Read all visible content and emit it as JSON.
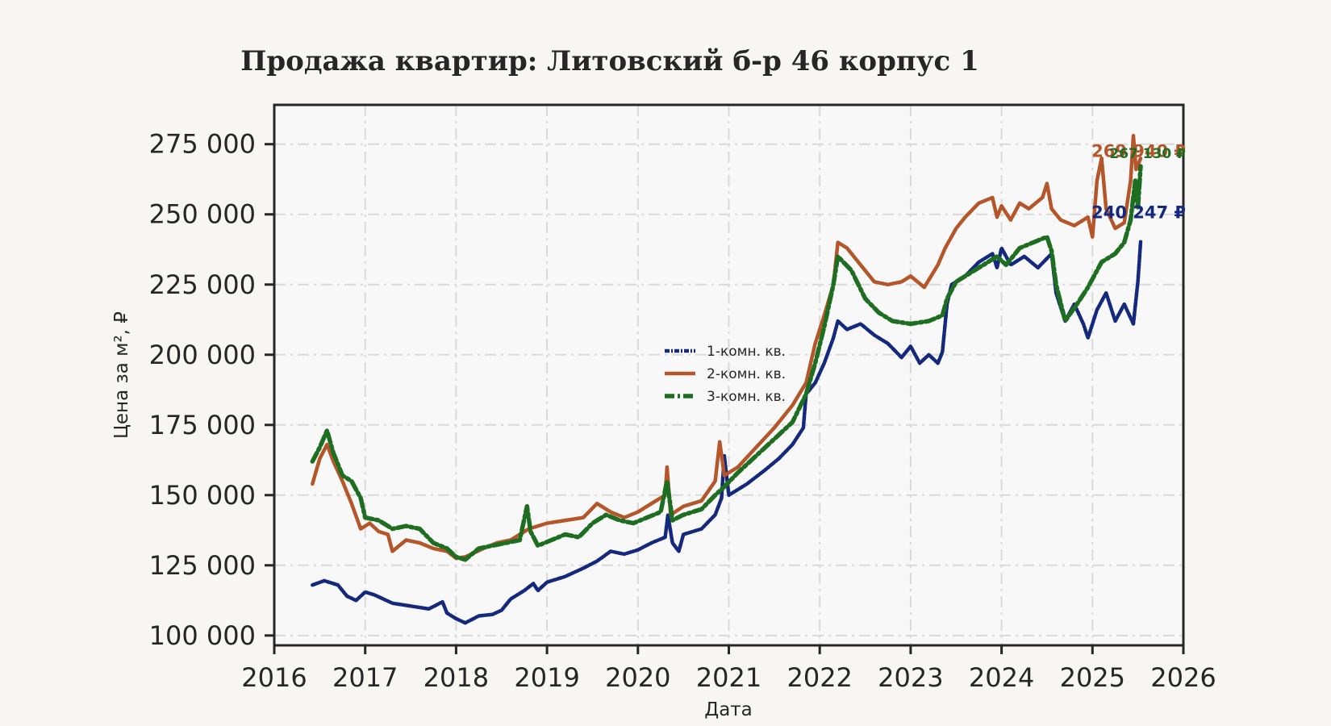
{
  "chart_data": {
    "type": "line",
    "title": "Продажа квартир: Литовский б-р 46 корпус 1",
    "xlabel": "Дата",
    "ylabel": "Цена за м², ₽",
    "xlim": [
      2016,
      2026
    ],
    "ylim": [
      96500,
      289000
    ],
    "x_ticks": [
      "2016",
      "2017",
      "2018",
      "2019",
      "2020",
      "2021",
      "2022",
      "2023",
      "2024",
      "2025",
      "2026"
    ],
    "y_ticks": [
      "100 000",
      "125 000",
      "150 000",
      "175 000",
      "200 000",
      "225 000",
      "250 000",
      "275 000"
    ],
    "grid": true,
    "legend_position": "center",
    "background": "#f8f8f8",
    "series": [
      {
        "name": "1-комн. кв.",
        "color": "#14287d",
        "end_label": "240 247 ₽",
        "points": [
          [
            2016.42,
            118000
          ],
          [
            2016.55,
            119500
          ],
          [
            2016.7,
            118000
          ],
          [
            2016.8,
            114000
          ],
          [
            2016.9,
            112500
          ],
          [
            2017.0,
            115500
          ],
          [
            2017.1,
            114500
          ],
          [
            2017.3,
            111500
          ],
          [
            2017.5,
            110500
          ],
          [
            2017.7,
            109500
          ],
          [
            2017.85,
            112000
          ],
          [
            2017.9,
            108000
          ],
          [
            2018.0,
            106000
          ],
          [
            2018.1,
            104500
          ],
          [
            2018.25,
            107000
          ],
          [
            2018.4,
            107500
          ],
          [
            2018.5,
            109000
          ],
          [
            2018.6,
            113000
          ],
          [
            2018.75,
            116000
          ],
          [
            2018.85,
            118500
          ],
          [
            2018.9,
            116000
          ],
          [
            2019.0,
            119000
          ],
          [
            2019.2,
            121000
          ],
          [
            2019.4,
            124000
          ],
          [
            2019.55,
            126500
          ],
          [
            2019.7,
            130000
          ],
          [
            2019.85,
            129000
          ],
          [
            2020.0,
            130500
          ],
          [
            2020.15,
            133000
          ],
          [
            2020.3,
            135000
          ],
          [
            2020.33,
            143000
          ],
          [
            2020.38,
            133000
          ],
          [
            2020.45,
            130000
          ],
          [
            2020.5,
            136000
          ],
          [
            2020.7,
            138000
          ],
          [
            2020.85,
            143000
          ],
          [
            2020.92,
            149000
          ],
          [
            2020.95,
            164000
          ],
          [
            2021.0,
            150000
          ],
          [
            2021.2,
            154000
          ],
          [
            2021.4,
            159000
          ],
          [
            2021.55,
            163000
          ],
          [
            2021.7,
            168000
          ],
          [
            2021.82,
            174000
          ],
          [
            2021.85,
            186000
          ],
          [
            2021.95,
            190000
          ],
          [
            2022.05,
            197000
          ],
          [
            2022.15,
            206000
          ],
          [
            2022.2,
            212000
          ],
          [
            2022.3,
            209000
          ],
          [
            2022.45,
            211000
          ],
          [
            2022.6,
            207000
          ],
          [
            2022.75,
            204000
          ],
          [
            2022.9,
            199000
          ],
          [
            2023.0,
            203000
          ],
          [
            2023.1,
            197000
          ],
          [
            2023.2,
            200000
          ],
          [
            2023.3,
            197000
          ],
          [
            2023.35,
            201000
          ],
          [
            2023.4,
            218000
          ],
          [
            2023.45,
            225000
          ],
          [
            2023.6,
            228000
          ],
          [
            2023.75,
            233000
          ],
          [
            2023.9,
            236000
          ],
          [
            2023.95,
            231000
          ],
          [
            2024.0,
            238000
          ],
          [
            2024.1,
            232000
          ],
          [
            2024.25,
            235000
          ],
          [
            2024.4,
            231000
          ],
          [
            2024.55,
            236000
          ],
          [
            2024.6,
            222000
          ],
          [
            2024.7,
            212000
          ],
          [
            2024.8,
            218000
          ],
          [
            2024.9,
            211000
          ],
          [
            2024.95,
            206000
          ],
          [
            2025.05,
            216000
          ],
          [
            2025.15,
            222000
          ],
          [
            2025.25,
            212000
          ],
          [
            2025.35,
            218000
          ],
          [
            2025.45,
            211000
          ],
          [
            2025.5,
            226000
          ],
          [
            2025.53,
            240247
          ]
        ]
      },
      {
        "name": "2-комн. кв.",
        "color": "#b5562a",
        "end_label": "269 940 ₽",
        "points": [
          [
            2016.42,
            154000
          ],
          [
            2016.5,
            163000
          ],
          [
            2016.58,
            168000
          ],
          [
            2016.65,
            162000
          ],
          [
            2016.75,
            155000
          ],
          [
            2016.85,
            147000
          ],
          [
            2016.95,
            138000
          ],
          [
            2017.05,
            140000
          ],
          [
            2017.15,
            137000
          ],
          [
            2017.25,
            136000
          ],
          [
            2017.3,
            130000
          ],
          [
            2017.45,
            134000
          ],
          [
            2017.6,
            133000
          ],
          [
            2017.75,
            131000
          ],
          [
            2017.9,
            130000
          ],
          [
            2018.0,
            127500
          ],
          [
            2018.1,
            128000
          ],
          [
            2018.3,
            131000
          ],
          [
            2018.45,
            133000
          ],
          [
            2018.6,
            134000
          ],
          [
            2018.8,
            138000
          ],
          [
            2019.0,
            140000
          ],
          [
            2019.2,
            141000
          ],
          [
            2019.4,
            142000
          ],
          [
            2019.55,
            147000
          ],
          [
            2019.7,
            144000
          ],
          [
            2019.85,
            142000
          ],
          [
            2020.0,
            144000
          ],
          [
            2020.15,
            147000
          ],
          [
            2020.3,
            150000
          ],
          [
            2020.32,
            160000
          ],
          [
            2020.36,
            143000
          ],
          [
            2020.5,
            146000
          ],
          [
            2020.7,
            148000
          ],
          [
            2020.85,
            155000
          ],
          [
            2020.9,
            169000
          ],
          [
            2020.95,
            157000
          ],
          [
            2021.1,
            160000
          ],
          [
            2021.3,
            167000
          ],
          [
            2021.5,
            174000
          ],
          [
            2021.7,
            182000
          ],
          [
            2021.85,
            190000
          ],
          [
            2021.95,
            204000
          ],
          [
            2022.05,
            214000
          ],
          [
            2022.15,
            225000
          ],
          [
            2022.2,
            240000
          ],
          [
            2022.3,
            238000
          ],
          [
            2022.45,
            232000
          ],
          [
            2022.6,
            226000
          ],
          [
            2022.75,
            225000
          ],
          [
            2022.9,
            226000
          ],
          [
            2023.0,
            228000
          ],
          [
            2023.15,
            224000
          ],
          [
            2023.3,
            232000
          ],
          [
            2023.38,
            238000
          ],
          [
            2023.5,
            245000
          ],
          [
            2023.6,
            249000
          ],
          [
            2023.75,
            254000
          ],
          [
            2023.9,
            256000
          ],
          [
            2023.95,
            249000
          ],
          [
            2024.0,
            253000
          ],
          [
            2024.1,
            248000
          ],
          [
            2024.2,
            254000
          ],
          [
            2024.3,
            252000
          ],
          [
            2024.45,
            256000
          ],
          [
            2024.5,
            261000
          ],
          [
            2024.55,
            252000
          ],
          [
            2024.65,
            248000
          ],
          [
            2024.8,
            246000
          ],
          [
            2024.95,
            249000
          ],
          [
            2025.0,
            242000
          ],
          [
            2025.05,
            262000
          ],
          [
            2025.1,
            270000
          ],
          [
            2025.15,
            252000
          ],
          [
            2025.25,
            245000
          ],
          [
            2025.35,
            247000
          ],
          [
            2025.42,
            262000
          ],
          [
            2025.45,
            278000
          ],
          [
            2025.48,
            266000
          ],
          [
            2025.53,
            269940
          ]
        ]
      },
      {
        "name": "3-комн. кв.",
        "color": "#1e6e22",
        "end_label": "267 130 ₽",
        "points": [
          [
            2016.42,
            162000
          ],
          [
            2016.5,
            167000
          ],
          [
            2016.58,
            173000
          ],
          [
            2016.65,
            165000
          ],
          [
            2016.75,
            157000
          ],
          [
            2016.85,
            155000
          ],
          [
            2016.95,
            149000
          ],
          [
            2017.0,
            142000
          ],
          [
            2017.15,
            141000
          ],
          [
            2017.3,
            138000
          ],
          [
            2017.45,
            139000
          ],
          [
            2017.6,
            138000
          ],
          [
            2017.75,
            133000
          ],
          [
            2017.9,
            131000
          ],
          [
            2018.0,
            128000
          ],
          [
            2018.1,
            127000
          ],
          [
            2018.25,
            131000
          ],
          [
            2018.4,
            132000
          ],
          [
            2018.55,
            133000
          ],
          [
            2018.7,
            134000
          ],
          [
            2018.78,
            146000
          ],
          [
            2018.82,
            137000
          ],
          [
            2018.9,
            132000
          ],
          [
            2019.05,
            134000
          ],
          [
            2019.2,
            136000
          ],
          [
            2019.35,
            135000
          ],
          [
            2019.5,
            140000
          ],
          [
            2019.65,
            143000
          ],
          [
            2019.8,
            141000
          ],
          [
            2019.95,
            140000
          ],
          [
            2020.1,
            142000
          ],
          [
            2020.25,
            144000
          ],
          [
            2020.32,
            155000
          ],
          [
            2020.38,
            141000
          ],
          [
            2020.5,
            143000
          ],
          [
            2020.7,
            145000
          ],
          [
            2020.85,
            150000
          ],
          [
            2020.95,
            153000
          ],
          [
            2021.1,
            158000
          ],
          [
            2021.3,
            164000
          ],
          [
            2021.5,
            170000
          ],
          [
            2021.7,
            176000
          ],
          [
            2021.85,
            186000
          ],
          [
            2021.95,
            197000
          ],
          [
            2022.05,
            210000
          ],
          [
            2022.15,
            225000
          ],
          [
            2022.2,
            235000
          ],
          [
            2022.35,
            230000
          ],
          [
            2022.5,
            220000
          ],
          [
            2022.65,
            215000
          ],
          [
            2022.8,
            212000
          ],
          [
            2023.0,
            211000
          ],
          [
            2023.2,
            212000
          ],
          [
            2023.35,
            214000
          ],
          [
            2023.4,
            220000
          ],
          [
            2023.5,
            226000
          ],
          [
            2023.65,
            229000
          ],
          [
            2023.8,
            232000
          ],
          [
            2023.95,
            235000
          ],
          [
            2024.05,
            232000
          ],
          [
            2024.2,
            238000
          ],
          [
            2024.35,
            240000
          ],
          [
            2024.5,
            242000
          ],
          [
            2024.55,
            237000
          ],
          [
            2024.6,
            225000
          ],
          [
            2024.7,
            212000
          ],
          [
            2024.85,
            219000
          ],
          [
            2024.95,
            224000
          ],
          [
            2025.1,
            233000
          ],
          [
            2025.25,
            236000
          ],
          [
            2025.35,
            240000
          ],
          [
            2025.42,
            248000
          ],
          [
            2025.47,
            262000
          ],
          [
            2025.5,
            252000
          ],
          [
            2025.53,
            267130
          ]
        ]
      }
    ]
  }
}
